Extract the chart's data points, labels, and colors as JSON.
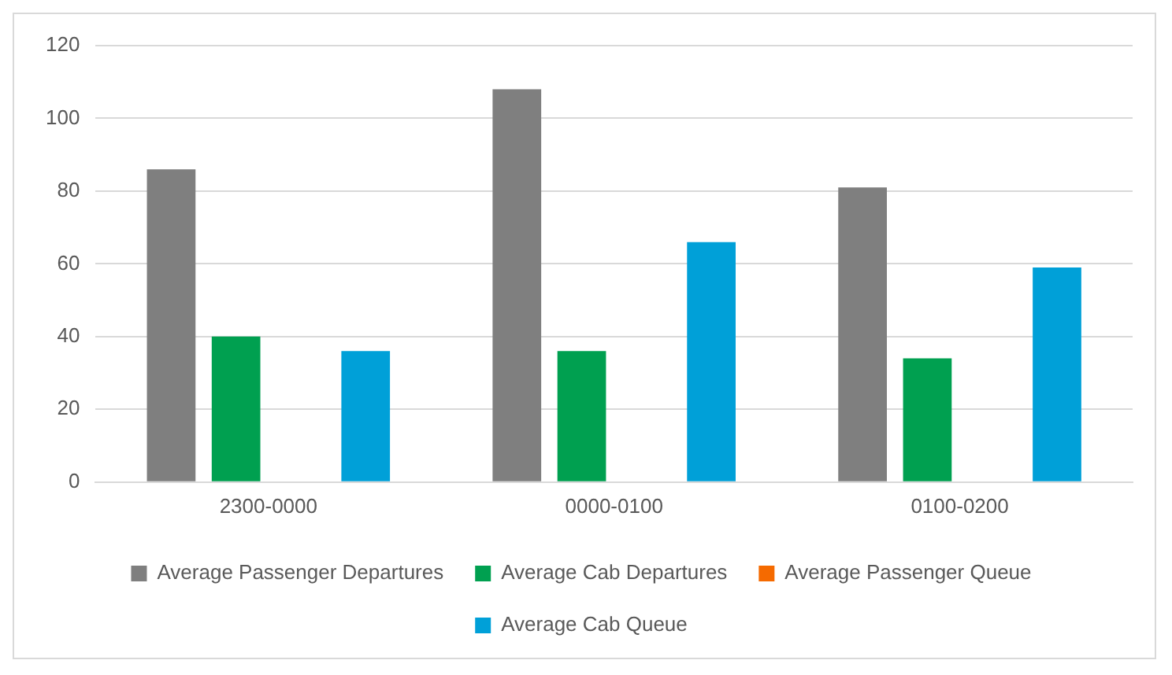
{
  "chart_data": {
    "type": "bar",
    "categories": [
      "2300-0000",
      "0000-0100",
      "0100-0200"
    ],
    "series": [
      {
        "name": "Average Passenger Departures",
        "color": "#7f7f7f",
        "values": [
          86,
          108,
          81
        ]
      },
      {
        "name": "Average Cab Departures",
        "color": "#00a050",
        "values": [
          40,
          36,
          34
        ]
      },
      {
        "name": "Average Passenger Queue",
        "color": "#f56a00",
        "values": [
          0,
          0,
          0
        ]
      },
      {
        "name": "Average Cab Queue",
        "color": "#00a0d8",
        "values": [
          36,
          66,
          59
        ]
      }
    ],
    "ylim": [
      0,
      120
    ],
    "yticks": [
      0,
      20,
      40,
      60,
      80,
      100,
      120
    ],
    "grid": "y",
    "legend": "bottom"
  }
}
